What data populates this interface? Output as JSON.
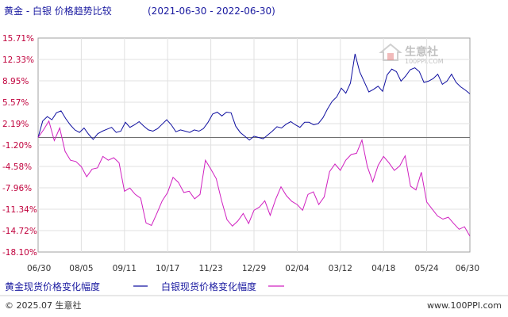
{
  "header": {
    "title": "黄金 - 白银 价格趋势比较",
    "date_range": "(2021-06-30 - 2022-06-30)"
  },
  "watermark": {
    "name": "生意社",
    "url": "100PPI.COM"
  },
  "footer": {
    "copyright": "© 2025.07 生意社",
    "site": "www.100PPI.com"
  },
  "colors": {
    "gold": "#1010a0",
    "silver": "#d020c0",
    "axis_label": "#c0003c",
    "background": "#ffffff",
    "grid": "#e0e0e0"
  },
  "chart_data": {
    "type": "line",
    "title": "黄金 - 白银 价格趋势比较",
    "x_ticks": [
      "06/30",
      "08/05",
      "09/11",
      "10/17",
      "11/23",
      "12/29",
      "02/04",
      "03/12",
      "04/18",
      "05/24",
      "06/30"
    ],
    "y_ticks": [
      "15.71%",
      "12.33%",
      "8.95%",
      "5.57%",
      "2.19%",
      "-1.20%",
      "-4.58%",
      "-7.96%",
      "-11.34%",
      "-14.72%",
      "-18.10%"
    ],
    "ylim": [
      -18.1,
      15.71
    ],
    "y_zero": 0,
    "grid": true,
    "legend_position": "bottom",
    "series": [
      {
        "name": "黄金现货价格变化幅度",
        "color": "#1010a0",
        "values": [
          0,
          2.6,
          3.3,
          2.8,
          3.9,
          4.2,
          3.0,
          2.0,
          1.2,
          0.8,
          1.5,
          0.5,
          -0.3,
          0.6,
          1.0,
          1.3,
          1.6,
          0.8,
          1.0,
          2.4,
          1.6,
          2.0,
          2.5,
          1.8,
          1.2,
          1.0,
          1.4,
          2.1,
          2.8,
          2.0,
          0.9,
          1.2,
          1.0,
          0.8,
          1.2,
          1.0,
          1.4,
          2.4,
          3.7,
          4.0,
          3.4,
          4.0,
          3.9,
          1.8,
          0.8,
          0.2,
          -0.4,
          0.2,
          0.0,
          -0.2,
          0.4,
          1.0,
          1.7,
          1.5,
          2.1,
          2.5,
          2.0,
          1.6,
          2.4,
          2.4,
          2.0,
          2.2,
          3.1,
          4.5,
          5.7,
          6.4,
          7.8,
          7.0,
          8.6,
          13.2,
          10.4,
          8.8,
          7.2,
          7.6,
          8.1,
          7.3,
          9.9,
          10.8,
          10.4,
          8.9,
          9.7,
          10.7,
          11.0,
          10.4,
          8.7,
          8.9,
          9.3,
          10.0,
          8.4,
          8.9,
          10.0,
          8.7,
          8.0,
          7.5,
          6.9
        ]
      },
      {
        "name": "白银现货价格变化幅度",
        "color": "#d020c0",
        "values": [
          0,
          1.2,
          2.6,
          -0.5,
          1.5,
          -2.2,
          -3.6,
          -3.8,
          -4.6,
          -6.2,
          -5.0,
          -4.8,
          -3.0,
          -3.6,
          -3.2,
          -4.0,
          -8.5,
          -8.0,
          -9.0,
          -9.6,
          -13.5,
          -13.9,
          -12.0,
          -10.0,
          -8.7,
          -6.3,
          -7.1,
          -8.7,
          -8.5,
          -9.7,
          -9.0,
          -3.6,
          -5.0,
          -6.5,
          -10.0,
          -13.0,
          -14.0,
          -13.2,
          -12.0,
          -13.6,
          -11.5,
          -11.0,
          -10.0,
          -12.3,
          -9.8,
          -7.8,
          -9.2,
          -10.1,
          -10.6,
          -11.5,
          -9.0,
          -8.6,
          -10.6,
          -9.4,
          -5.4,
          -4.2,
          -5.2,
          -3.6,
          -2.7,
          -2.5,
          -0.4,
          -4.6,
          -7.0,
          -4.4,
          -3.0,
          -4.0,
          -5.2,
          -4.5,
          -2.9,
          -7.7,
          -8.3,
          -5.5,
          -10.2,
          -11.3,
          -12.4,
          -12.9,
          -12.6,
          -13.6,
          -14.5,
          -14.1,
          -15.6
        ]
      }
    ]
  }
}
